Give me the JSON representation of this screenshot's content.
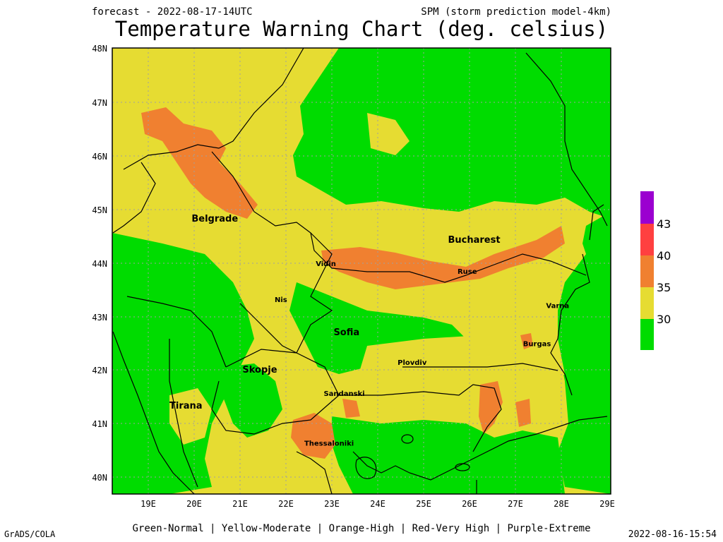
{
  "header": {
    "forecast": "forecast - 2022-08-17-14UTC",
    "model": "SPM (storm prediction model-4km)",
    "title": "Temperature Warning Chart (deg. celsius)"
  },
  "map": {
    "lat_ticks": [
      "48N",
      "47N",
      "46N",
      "45N",
      "44N",
      "43N",
      "42N",
      "41N",
      "40N"
    ],
    "lon_ticks": [
      "19E",
      "20E",
      "21E",
      "22E",
      "23E",
      "24E",
      "25E",
      "26E",
      "27E",
      "28E",
      "29E"
    ],
    "cities": [
      {
        "name": "Belgrade",
        "lon": 20.45,
        "lat": 44.82,
        "big": true
      },
      {
        "name": "Bucharest",
        "lon": 26.1,
        "lat": 44.43,
        "big": true
      },
      {
        "name": "Vidin",
        "lon": 22.87,
        "lat": 43.99,
        "big": false
      },
      {
        "name": "Ruse",
        "lon": 25.95,
        "lat": 43.85,
        "big": false
      },
      {
        "name": "Nis",
        "lon": 21.89,
        "lat": 43.32,
        "big": false
      },
      {
        "name": "Varna",
        "lon": 27.92,
        "lat": 43.21,
        "big": false
      },
      {
        "name": "Sofia",
        "lon": 23.32,
        "lat": 42.7,
        "big": true
      },
      {
        "name": "Burgas",
        "lon": 27.47,
        "lat": 42.5,
        "big": false
      },
      {
        "name": "Plovdiv",
        "lon": 24.75,
        "lat": 42.15,
        "big": false
      },
      {
        "name": "Skopje",
        "lon": 21.43,
        "lat": 42.0,
        "big": true
      },
      {
        "name": "Sandanski",
        "lon": 23.27,
        "lat": 41.57,
        "big": false
      },
      {
        "name": "Tirana",
        "lon": 19.82,
        "lat": 41.33,
        "big": true
      },
      {
        "name": "Thessaloniki",
        "lon": 22.94,
        "lat": 40.64,
        "big": false
      }
    ]
  },
  "colorbar": {
    "labels": [
      "43",
      "40",
      "35",
      "30"
    ],
    "colors": [
      "#9b00d0",
      "#ff4040",
      "#f08030",
      "#e6dc32",
      "#00dc00"
    ]
  },
  "footer": {
    "left": "GrADS/COLA",
    "legend": "Green-Normal | Yellow-Moderate | Orange-High | Red-Very High | Purple-Extreme",
    "right": "2022-08-16-15:54"
  }
}
